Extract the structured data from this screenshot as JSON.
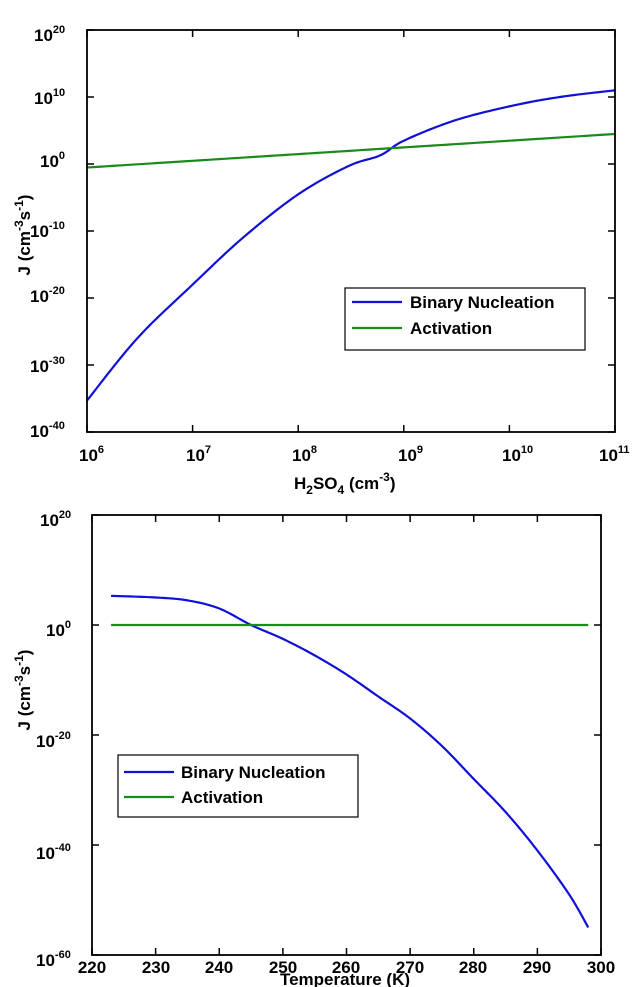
{
  "colors": {
    "binary_nucleation": "#1010d8",
    "activation": "#1a8a1a",
    "axes": "#000000",
    "background": "#ffffff"
  },
  "chart_data": [
    {
      "type": "line",
      "xscale": "log",
      "yscale": "log",
      "xlim": [
        1000000,
        100000000000
      ],
      "ylim": [
        1e-40,
        1e+20
      ],
      "xticks": [
        {
          "base": "10",
          "exp": "6",
          "value": 1000000
        },
        {
          "base": "10",
          "exp": "7",
          "value": 10000000
        },
        {
          "base": "10",
          "exp": "8",
          "value": 100000000
        },
        {
          "base": "10",
          "exp": "9",
          "value": 1000000000
        },
        {
          "base": "10",
          "exp": "10",
          "value": 10000000000
        },
        {
          "base": "10",
          "exp": "11",
          "value": 100000000000
        }
      ],
      "yticks": [
        {
          "base": "10",
          "exp": "20",
          "value": 1e+20
        },
        {
          "base": "10",
          "exp": "10",
          "value": 10000000000.0
        },
        {
          "base": "10",
          "exp": "0",
          "value": 1
        },
        {
          "base": "10",
          "exp": "-10",
          "value": 1e-10
        },
        {
          "base": "10",
          "exp": "-20",
          "value": 1e-20
        },
        {
          "base": "10",
          "exp": "-30",
          "value": 1e-30
        },
        {
          "base": "10",
          "exp": "-40",
          "value": 1e-40
        }
      ],
      "xlabel": {
        "a": "H",
        "a_sub": "2",
        "b": "SO",
        "b_sub": "4",
        "c": " (cm",
        "c_sup": "-3",
        "d": ")"
      },
      "ylabel": {
        "a": "J (cm",
        "a_sup": "-3",
        "b": "s",
        "b_sup": "-1",
        "c": ")"
      },
      "legend": {
        "position": "lower-right",
        "entries": [
          "Binary Nucleation",
          "Activation"
        ]
      },
      "grid": false,
      "series": [
        {
          "name": "Binary Nucleation",
          "color_key": "binary_nucleation",
          "x": [
            1000000,
            3000000,
            10000000,
            30000000,
            100000000,
            300000000,
            600000000,
            1000000000,
            3000000000,
            10000000000,
            30000000000,
            100000000000
          ],
          "y": [
            5e-36,
            1e-26,
            1e-18,
            1e-11,
            3e-05,
            0.5,
            20.0,
            3000.0,
            3000000.0,
            400000000.0,
            10000000000.0,
            100000000000.0
          ]
        },
        {
          "name": "Activation",
          "color_key": "activation",
          "x": [
            1000000,
            10000000,
            100000000,
            1000000000,
            10000000000,
            100000000000
          ],
          "y": [
            0.3,
            3,
            30,
            300,
            3000,
            30000
          ]
        }
      ]
    },
    {
      "type": "line",
      "xscale": "linear",
      "yscale": "log",
      "xlim": [
        220,
        300
      ],
      "ylim": [
        1e-60,
        1e+20
      ],
      "xticks": [
        {
          "label": "220",
          "value": 220
        },
        {
          "label": "230",
          "value": 230
        },
        {
          "label": "240",
          "value": 240
        },
        {
          "label": "250",
          "value": 250
        },
        {
          "label": "260",
          "value": 260
        },
        {
          "label": "270",
          "value": 270
        },
        {
          "label": "280",
          "value": 280
        },
        {
          "label": "290",
          "value": 290
        },
        {
          "label": "300",
          "value": 300
        }
      ],
      "yticks": [
        {
          "base": "10",
          "exp": "20",
          "value": 1e+20
        },
        {
          "base": "10",
          "exp": "0",
          "value": 1
        },
        {
          "base": "10",
          "exp": "-20",
          "value": 1e-20
        },
        {
          "base": "10",
          "exp": "-40",
          "value": 1e-40
        },
        {
          "base": "10",
          "exp": "-60",
          "value": 1e-60
        }
      ],
      "xlabel": "Temperature (K)",
      "ylabel": {
        "a": "J (cm",
        "a_sup": "-3",
        "b": "s",
        "b_sup": "-1",
        "c": ")"
      },
      "legend": {
        "position": "middle-left",
        "entries": [
          "Binary Nucleation",
          "Activation"
        ]
      },
      "grid": false,
      "series": [
        {
          "name": "Binary Nucleation",
          "color_key": "binary_nucleation",
          "x": [
            223,
            230,
            235,
            240,
            245,
            250,
            255,
            260,
            265,
            270,
            275,
            280,
            285,
            290,
            295,
            298
          ],
          "y": [
            200000.0,
            100000.0,
            30000.0,
            1000.0,
            1,
            0.003,
            3e-06,
            1e-09,
            1e-13,
            1e-17,
            1e-22,
            1e-28,
            1e-34,
            1e-41,
            1e-49,
            1e-55
          ]
        },
        {
          "name": "Activation",
          "color_key": "activation",
          "x": [
            223,
            298
          ],
          "y": [
            1,
            1
          ]
        }
      ]
    }
  ]
}
